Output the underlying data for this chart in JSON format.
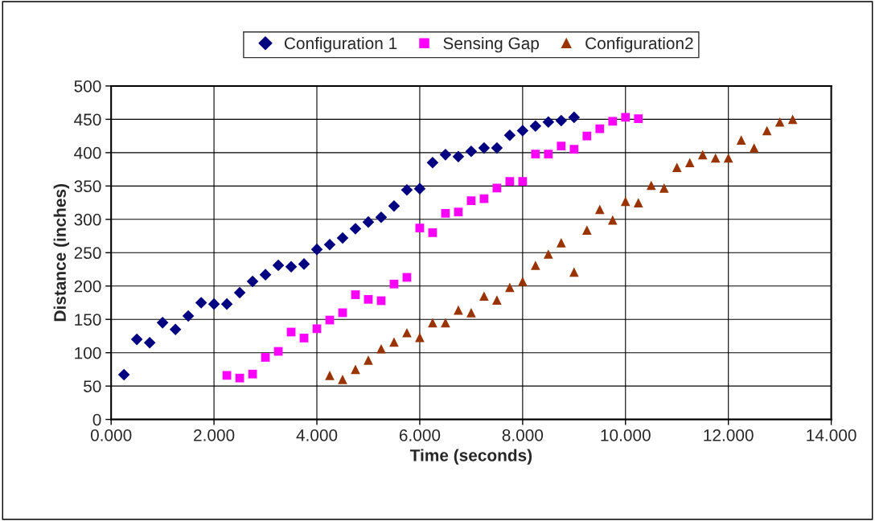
{
  "chart_data": {
    "type": "scatter",
    "xlabel": "Time (seconds)",
    "ylabel": "Distance (inches)",
    "xlim": [
      0,
      14
    ],
    "xticks": [
      {
        "value": 0,
        "label": "0.000"
      },
      {
        "value": 2,
        "label": "2.000"
      },
      {
        "value": 4,
        "label": "4.000"
      },
      {
        "value": 6,
        "label": "6.000"
      },
      {
        "value": 8,
        "label": "8.000"
      },
      {
        "value": 10,
        "label": "10.000"
      },
      {
        "value": 12,
        "label": "12.000"
      },
      {
        "value": 14,
        "label": "14.000"
      }
    ],
    "ylim": [
      0,
      500
    ],
    "yticks": [
      0,
      50,
      100,
      150,
      200,
      250,
      300,
      350,
      400,
      450,
      500
    ],
    "grid": true,
    "legend": "top",
    "series": [
      {
        "name": "Configuration 1",
        "color": "#000080",
        "marker": "diamond",
        "x": [
          0.25,
          0.5,
          0.75,
          1.0,
          1.25,
          1.5,
          1.75,
          2.0,
          2.25,
          2.5,
          2.75,
          3.0,
          3.25,
          3.5,
          3.75,
          4.0,
          4.25,
          4.5,
          4.75,
          5.0,
          5.25,
          5.5,
          5.75,
          6.0,
          6.25,
          6.5,
          6.75,
          7.0,
          7.25,
          7.5,
          7.75,
          8.0,
          8.25,
          8.5,
          8.75,
          9.0
        ],
        "values": [
          67,
          120,
          115,
          145,
          135,
          155,
          175,
          173,
          173,
          190,
          207,
          217,
          231,
          229,
          233,
          255,
          262,
          272,
          286,
          296,
          303,
          320,
          344,
          346,
          385,
          397,
          394,
          402,
          407,
          407,
          426,
          433,
          440,
          446,
          448,
          453
        ]
      },
      {
        "name": "Sensing Gap",
        "color": "#ff00ff",
        "marker": "square",
        "x": [
          2.25,
          2.5,
          2.75,
          3.0,
          3.25,
          3.5,
          3.75,
          4.0,
          4.25,
          4.5,
          4.75,
          5.0,
          5.25,
          5.5,
          5.75,
          6.0,
          6.25,
          6.5,
          6.75,
          7.0,
          7.25,
          7.5,
          7.75,
          8.0,
          8.25,
          8.5,
          8.75,
          9.0,
          9.25,
          9.5,
          9.75,
          10.0,
          10.25
        ],
        "values": [
          66,
          62,
          68,
          93,
          102,
          131,
          122,
          136,
          149,
          160,
          187,
          180,
          178,
          203,
          213,
          287,
          280,
          309,
          311,
          328,
          331,
          347,
          357,
          357,
          398,
          398,
          410,
          405,
          425,
          436,
          447,
          453,
          451
        ]
      },
      {
        "name": "Configuration2",
        "color": "#993300",
        "marker": "triangle",
        "x": [
          4.25,
          4.5,
          4.75,
          5.0,
          5.25,
          5.5,
          5.75,
          6.0,
          6.25,
          6.5,
          6.75,
          7.0,
          7.25,
          7.5,
          7.75,
          8.0,
          8.25,
          8.5,
          8.75,
          9.0,
          9.25,
          9.5,
          9.75,
          10.0,
          10.25,
          10.5,
          10.75,
          11.0,
          11.25,
          11.5,
          11.75,
          12.0,
          12.25,
          12.5,
          12.75,
          13.0,
          13.25
        ],
        "values": [
          66,
          60,
          75,
          89,
          106,
          116,
          130,
          123,
          145,
          145,
          164,
          160,
          185,
          179,
          198,
          207,
          231,
          248,
          265,
          221,
          284,
          315,
          299,
          327,
          325,
          351,
          347,
          378,
          385,
          397,
          392,
          392,
          419,
          407,
          433,
          446,
          450
        ]
      }
    ]
  }
}
